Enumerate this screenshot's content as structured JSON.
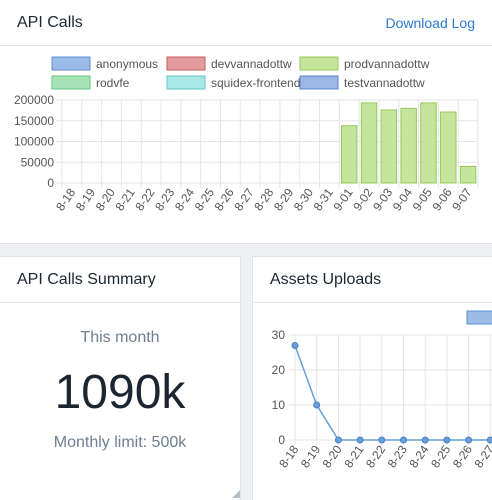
{
  "calls_card": {
    "title": "API Calls",
    "download_label": "Download Log"
  },
  "summary_card": {
    "title": "API Calls Summary",
    "subtitle": "This month",
    "value": "1090k",
    "limit_label": "Monthly limit: 500k"
  },
  "assets_card": {
    "title": "Assets Uploads"
  },
  "chart_data": [
    {
      "type": "bar",
      "categories": [
        "8-18",
        "8-19",
        "8-20",
        "8-21",
        "8-22",
        "8-23",
        "8-24",
        "8-25",
        "8-26",
        "8-27",
        "8-28",
        "8-29",
        "8-30",
        "8-31",
        "9-01",
        "9-02",
        "9-03",
        "9-04",
        "9-05",
        "9-06",
        "9-07"
      ],
      "series": [
        {
          "name": "anonymous",
          "color": "#9bbce6",
          "border": "#5a8fd0",
          "values": [
            0,
            0,
            0,
            0,
            0,
            0,
            0,
            0,
            0,
            0,
            0,
            0,
            0,
            0,
            0,
            0,
            0,
            0,
            0,
            0,
            0
          ]
        },
        {
          "name": "devvannadottw",
          "color": "#e29c9c",
          "border": "#c95b5b",
          "values": [
            0,
            0,
            0,
            0,
            0,
            0,
            0,
            0,
            0,
            0,
            0,
            0,
            0,
            0,
            0,
            0,
            0,
            0,
            0,
            0,
            0
          ]
        },
        {
          "name": "prodvannadottw",
          "color": "#c6e59c",
          "border": "#96c95b",
          "values": [
            0,
            0,
            0,
            0,
            0,
            0,
            0,
            0,
            0,
            0,
            0,
            0,
            0,
            0,
            138000,
            193000,
            176000,
            180000,
            193000,
            171000,
            40000
          ]
        },
        {
          "name": "rodvfe",
          "color": "#a6e4b6",
          "border": "#62c67e",
          "values": [
            0,
            0,
            0,
            0,
            0,
            0,
            0,
            0,
            0,
            0,
            0,
            0,
            0,
            0,
            0,
            0,
            0,
            0,
            0,
            0,
            0
          ]
        },
        {
          "name": "squidex-frontend",
          "color": "#a9e6e6",
          "border": "#62c8c8",
          "values": [
            0,
            0,
            0,
            0,
            0,
            0,
            0,
            0,
            0,
            0,
            0,
            0,
            0,
            0,
            0,
            0,
            0,
            0,
            0,
            0,
            0
          ]
        },
        {
          "name": "testvannadottw",
          "color": "#9cb8e6",
          "border": "#5a84d0",
          "values": [
            0,
            0,
            0,
            0,
            0,
            0,
            0,
            0,
            0,
            0,
            0,
            0,
            0,
            0,
            0,
            0,
            0,
            0,
            0,
            0,
            0
          ]
        }
      ],
      "yticks": [
        0,
        50000,
        100000,
        150000,
        200000
      ],
      "ylim": [
        0,
        200000
      ],
      "grid": true,
      "legend": "top"
    },
    {
      "type": "line",
      "categories": [
        "8-18",
        "8-19",
        "8-20",
        "8-21",
        "8-22",
        "8-23",
        "8-24",
        "8-25",
        "8-26",
        "8-27"
      ],
      "values": [
        27,
        10,
        0,
        0,
        0,
        0,
        0,
        0,
        0,
        0
      ],
      "color": "#6a9ed8",
      "yticks": [
        0,
        10,
        20,
        30
      ],
      "ylim": [
        0,
        30
      ],
      "grid": true,
      "legend": "top-right"
    }
  ]
}
